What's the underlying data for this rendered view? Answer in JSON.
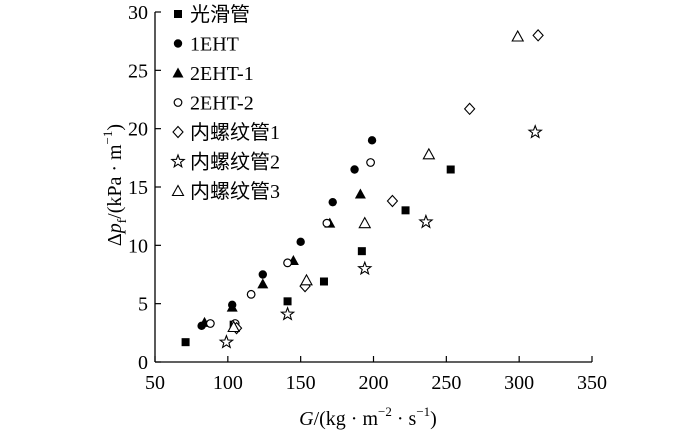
{
  "chart_data": {
    "type": "scatter",
    "title": "",
    "xlabel": {
      "var": "G",
      "unit_open": "/(kg · m",
      "exp1": "−2",
      "mid": " · s",
      "exp2": "−1",
      "close": ")"
    },
    "ylabel": {
      "delta": "Δ",
      "var": "p",
      "sub": "f",
      "unit_open": "/(kPa · m",
      "exp": "−1",
      "close": ")"
    },
    "xlim": [
      50,
      350
    ],
    "ylim": [
      0,
      30
    ],
    "xticks": [
      50,
      100,
      150,
      200,
      250,
      300,
      350
    ],
    "yticks": [
      0,
      5,
      10,
      15,
      20,
      25,
      30
    ],
    "legend_position": "top-left",
    "grid": false,
    "series": [
      {
        "name": "光滑管",
        "marker": "square",
        "points": [
          [
            71,
            1.7
          ],
          [
            104,
            3.2
          ],
          [
            141,
            5.2
          ],
          [
            166,
            6.9
          ],
          [
            192,
            9.5
          ],
          [
            222,
            13.0
          ],
          [
            253,
            16.5
          ]
        ]
      },
      {
        "name": "1EHT",
        "marker": "circle",
        "points": [
          [
            82,
            3.1
          ],
          [
            103,
            4.9
          ],
          [
            124,
            7.5
          ],
          [
            150,
            10.3
          ],
          [
            172,
            13.7
          ],
          [
            187,
            16.5
          ],
          [
            199,
            19.0
          ]
        ]
      },
      {
        "name": "2EHT-1",
        "marker": "triangle",
        "points": [
          [
            84,
            3.4
          ],
          [
            103,
            4.7
          ],
          [
            124,
            6.7
          ],
          [
            145,
            8.7
          ],
          [
            170,
            11.9
          ],
          [
            191,
            14.4
          ]
        ]
      },
      {
        "name": "2EHT-2",
        "marker": "circle-open",
        "points": [
          [
            88,
            3.3
          ],
          [
            105,
            3.3
          ],
          [
            116,
            5.8
          ],
          [
            141,
            8.5
          ],
          [
            168,
            11.9
          ],
          [
            198,
            17.1
          ]
        ]
      },
      {
        "name": "内螺纹管1",
        "marker": "diamond",
        "points": [
          [
            106,
            2.9
          ],
          [
            153,
            6.5
          ],
          [
            213,
            13.8
          ],
          [
            266,
            21.7
          ],
          [
            313,
            28.0
          ]
        ]
      },
      {
        "name": "内螺纹管2",
        "marker": "star",
        "points": [
          [
            99,
            1.7
          ],
          [
            141,
            4.1
          ],
          [
            194,
            8.0
          ],
          [
            236,
            12.0
          ],
          [
            311,
            19.7
          ]
        ]
      },
      {
        "name": "内螺纹管3",
        "marker": "triangle-open",
        "points": [
          [
            104,
            3.0
          ],
          [
            154,
            7.0
          ],
          [
            194,
            11.9
          ],
          [
            238,
            17.8
          ],
          [
            299,
            27.9
          ]
        ]
      }
    ]
  }
}
